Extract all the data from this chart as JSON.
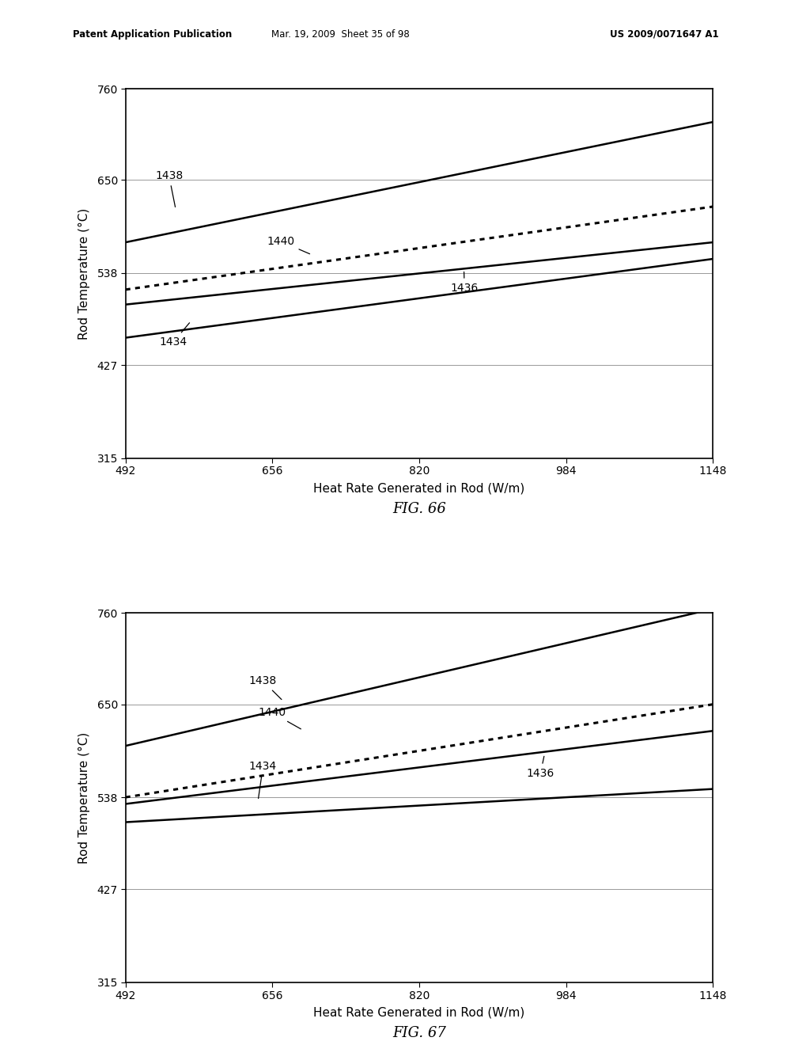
{
  "background_color": "#ffffff",
  "header_left": "Patent Application Publication",
  "header_mid": "Mar. 19, 2009  Sheet 35 of 98",
  "header_right": "US 2009/0071647 A1",
  "x_min": 492,
  "x_max": 1148,
  "y_min": 315,
  "y_max": 760,
  "x_ticks": [
    492,
    656,
    820,
    984,
    1148
  ],
  "y_ticks": [
    315,
    427,
    538,
    650,
    760
  ],
  "xlabel": "Heat Rate Generated in Rod (W/m)",
  "ylabel": "Rod Temperature (°C)",
  "fig66_title": "FIG. 66",
  "fig67_title": "FIG. 67",
  "fig66": {
    "lines": [
      {
        "label": "1438",
        "x": [
          492,
          1148
        ],
        "y": [
          575,
          720
        ],
        "style": "solid",
        "linewidth": 1.8,
        "color": "#000000",
        "ann_x": 525,
        "ann_y": 655,
        "arr_x": 548,
        "arr_y": 615
      },
      {
        "label": "1440",
        "x": [
          492,
          1148
        ],
        "y": [
          518,
          618
        ],
        "style": "dotted",
        "linewidth": 2.2,
        "color": "#000000",
        "ann_x": 650,
        "ann_y": 576,
        "arr_x": 700,
        "arr_y": 560
      },
      {
        "label": "1436",
        "x": [
          492,
          1148
        ],
        "y": [
          500,
          575
        ],
        "style": "solid",
        "linewidth": 1.8,
        "color": "#000000",
        "ann_x": 855,
        "ann_y": 520,
        "arr_x": 870,
        "arr_y": 542
      },
      {
        "label": "1434",
        "x": [
          492,
          1148
        ],
        "y": [
          460,
          555
        ],
        "style": "solid",
        "linewidth": 1.8,
        "color": "#000000",
        "ann_x": 530,
        "ann_y": 455,
        "arr_x": 565,
        "arr_y": 480
      }
    ]
  },
  "fig67": {
    "lines": [
      {
        "label": "1438",
        "x": [
          492,
          1148
        ],
        "y": [
          600,
          765
        ],
        "style": "solid",
        "linewidth": 1.8,
        "color": "#000000",
        "ann_x": 630,
        "ann_y": 678,
        "arr_x": 668,
        "arr_y": 654
      },
      {
        "label": "1440",
        "x": [
          492,
          1148
        ],
        "y": [
          538,
          650
        ],
        "style": "dotted",
        "linewidth": 2.2,
        "color": "#000000",
        "ann_x": 640,
        "ann_y": 640,
        "arr_x": 690,
        "arr_y": 619
      },
      {
        "label": "1436",
        "x": [
          492,
          1148
        ],
        "y": [
          530,
          618
        ],
        "style": "solid",
        "linewidth": 1.8,
        "color": "#000000",
        "ann_x": 940,
        "ann_y": 567,
        "arr_x": 960,
        "arr_y": 590
      },
      {
        "label": "1434",
        "x": [
          492,
          1148
        ],
        "y": [
          508,
          548
        ],
        "style": "solid",
        "linewidth": 1.8,
        "color": "#000000",
        "ann_x": 630,
        "ann_y": 575,
        "arr_x": 640,
        "arr_y": 534
      }
    ]
  }
}
